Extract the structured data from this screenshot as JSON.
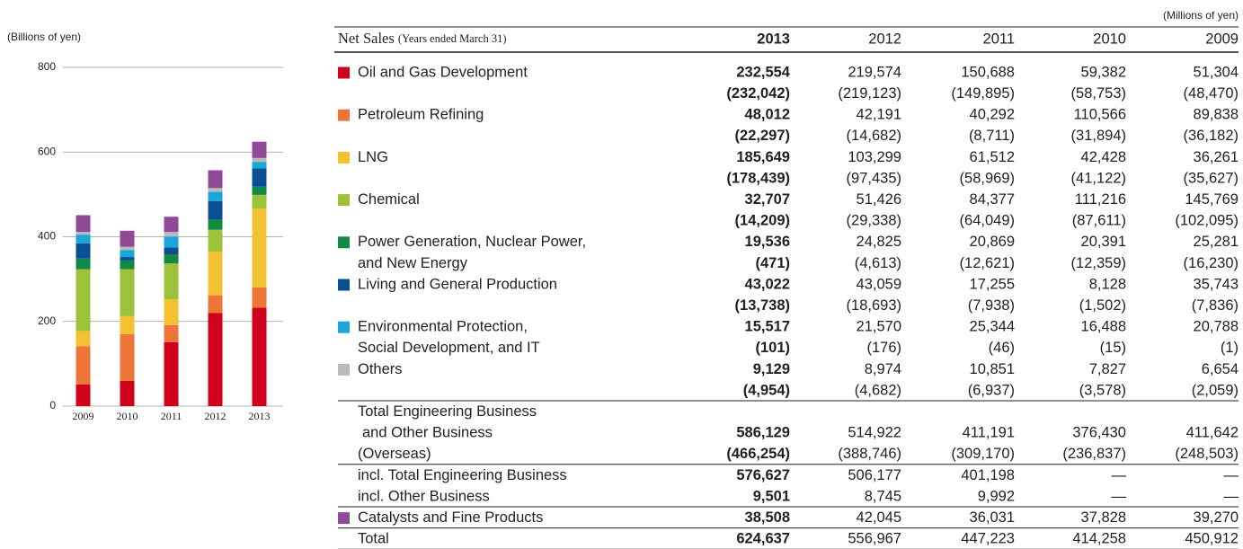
{
  "chart_data": {
    "type": "bar",
    "stacked": true,
    "y_axis_label": "(Billions of yen)",
    "categories": [
      "2009",
      "2010",
      "2011",
      "2012",
      "2013"
    ],
    "ylim": [
      0,
      800
    ],
    "yticks": [
      0,
      200,
      400,
      600,
      800
    ],
    "grid": true,
    "series": [
      {
        "color": "#d0021b",
        "values": [
          51.3,
          59.4,
          150.7,
          219.6,
          232.6
        ]
      },
      {
        "color": "#ee7539",
        "values": [
          89.8,
          110.6,
          40.3,
          42.2,
          48.0
        ]
      },
      {
        "color": "#f2c232",
        "values": [
          36.3,
          42.4,
          61.5,
          103.3,
          185.6
        ]
      },
      {
        "color": "#9cc23a",
        "values": [
          145.8,
          111.2,
          84.4,
          51.4,
          32.7
        ]
      },
      {
        "color": "#128a45",
        "values": [
          25.3,
          20.4,
          20.9,
          24.8,
          19.5
        ]
      },
      {
        "color": "#0a4f93",
        "values": [
          35.7,
          8.1,
          17.3,
          43.1,
          43.0
        ]
      },
      {
        "color": "#19a6d9",
        "values": [
          20.8,
          16.5,
          25.3,
          21.6,
          15.5
        ]
      },
      {
        "color": "#b8babc",
        "values": [
          6.7,
          7.8,
          10.9,
          9.0,
          9.1
        ]
      },
      {
        "color": "#8e4a97",
        "values": [
          39.3,
          37.8,
          36.0,
          42.0,
          38.5
        ]
      }
    ]
  },
  "table": {
    "unit": "(Millions of yen)",
    "title": "Net Sales",
    "subtitle": "(Years ended March 31)",
    "years": [
      "2013",
      "2012",
      "2011",
      "2010",
      "2009"
    ],
    "rows": [
      {
        "label": "Oil and Gas Development",
        "color": "#d0021b",
        "values": [
          "232,554",
          "219,574",
          "150,688",
          "59,382",
          "51,304"
        ]
      },
      {
        "values": [
          "(232,042)",
          "(219,123)",
          "(149,895)",
          "(58,753)",
          "(48,470)"
        ]
      },
      {
        "label": "Petroleum Refining",
        "color": "#ee7539",
        "values": [
          "48,012",
          "42,191",
          "40,292",
          "110,566",
          "89,838"
        ]
      },
      {
        "values": [
          "(22,297)",
          "(14,682)",
          "(8,711)",
          "(31,894)",
          "(36,182)"
        ]
      },
      {
        "label": "LNG",
        "color": "#f2c232",
        "values": [
          "185,649",
          "103,299",
          "61,512",
          "42,428",
          "36,261"
        ]
      },
      {
        "values": [
          "(178,439)",
          "(97,435)",
          "(58,969)",
          "(41,122)",
          "(35,627)"
        ]
      },
      {
        "label": "Chemical",
        "color": "#9cc23a",
        "values": [
          "32,707",
          "51,426",
          "84,377",
          "111,216",
          "145,769"
        ]
      },
      {
        "values": [
          "(14,209)",
          "(29,338)",
          "(64,049)",
          "(87,611)",
          "(102,095)"
        ]
      },
      {
        "label": "Power Generation, Nuclear Power,",
        "color": "#128a45",
        "values": [
          "19,536",
          "24,825",
          "20,869",
          "20,391",
          "25,281"
        ]
      },
      {
        "label": "and New Energy",
        "values": [
          "(471)",
          "(4,613)",
          "(12,621)",
          "(12,359)",
          "(16,230)"
        ]
      },
      {
        "label": "Living and General Production",
        "color": "#0a4f93",
        "values": [
          "43,022",
          "43,059",
          "17,255",
          "8,128",
          "35,743"
        ]
      },
      {
        "values": [
          "(13,738)",
          "(18,693)",
          "(7,938)",
          "(1,502)",
          "(7,836)"
        ]
      },
      {
        "label": "Environmental Protection,",
        "color": "#19a6d9",
        "values": [
          "15,517",
          "21,570",
          "25,344",
          "16,488",
          "20,788"
        ]
      },
      {
        "label": "Social Development, and IT",
        "values": [
          "(101)",
          "(176)",
          "(46)",
          "(15)",
          "(1)"
        ]
      },
      {
        "label": "Others",
        "color": "#b8babc",
        "values": [
          "9,129",
          "8,974",
          "10,851",
          "7,827",
          "6,654"
        ]
      },
      {
        "values": [
          "(4,954)",
          "(4,682)",
          "(6,937)",
          "(3,578)",
          "(2,059)"
        ]
      },
      {
        "label": "Total Engineering Business"
      },
      {
        "label": "and Other Business",
        "values": [
          "586,129",
          "514,922",
          "411,191",
          "376,430",
          "411,642"
        ]
      },
      {
        "label": "(Overseas)",
        "values": [
          "(466,254)",
          "(388,746)",
          "(309,170)",
          "(236,837)",
          "(248,503)"
        ]
      },
      {
        "label": "incl. Total Engineering Business",
        "values": [
          "576,627",
          "506,177",
          "401,198",
          "—",
          "—"
        ]
      },
      {
        "label": "incl. Other Business",
        "values": [
          "9,501",
          "8,745",
          "9,992",
          "—",
          "—"
        ]
      },
      {
        "label": "Catalysts and Fine Products",
        "color": "#8e4a97",
        "values": [
          "38,508",
          "42,045",
          "36,031",
          "37,828",
          "39,270"
        ]
      },
      {
        "label": "Total",
        "values": [
          "624,637",
          "556,967",
          "447,223",
          "414,258",
          "450,912"
        ]
      }
    ]
  }
}
